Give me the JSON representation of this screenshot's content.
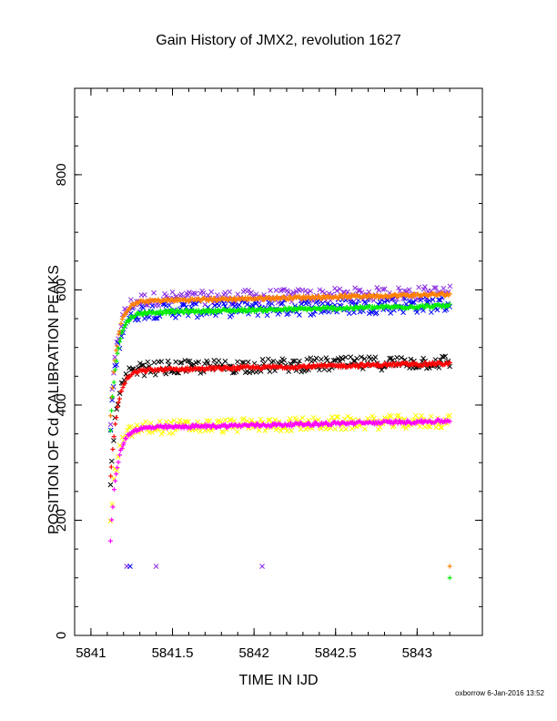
{
  "title": "Gain History of JMX2, revolution 1627",
  "footer": "oxborrow  6-Jan-2016 13:52",
  "chart_data": {
    "type": "scatter",
    "title": "Gain History of JMX2, revolution 1627",
    "xlabel": "TIME IN IJD",
    "ylabel": "POSITION OF Cd CALIBRATION PEAKS",
    "xlim": [
      5840.9,
      5843.4
    ],
    "ylim": [
      0,
      950
    ],
    "xticks": [
      5841,
      5841.5,
      5842,
      5842.5,
      5843
    ],
    "xtick_labels": [
      "5841",
      "5841.5",
      "5842",
      "5842.5",
      "5843"
    ],
    "yticks": [
      0,
      200,
      400,
      600,
      800
    ],
    "ytick_labels": [
      "0",
      "200",
      "400",
      "600",
      "800"
    ],
    "grid": false,
    "series": [
      {
        "color": "#8a2be2",
        "marker": "x",
        "level": 585,
        "start": 370,
        "noise": 12,
        "x_start": 5841.12,
        "x_end": 5843.2,
        "n": 220
      },
      {
        "color": "#0000ff",
        "marker": "x",
        "level": 565,
        "start": 360,
        "noise": 14,
        "x_start": 5841.12,
        "x_end": 5843.2,
        "n": 220
      },
      {
        "color": "#ff8000",
        "marker": "+",
        "level": 582,
        "start": 380,
        "noise": 3,
        "x_start": 5841.12,
        "x_end": 5843.2,
        "n": 300
      },
      {
        "color": "#00ee00",
        "marker": "+",
        "level": 562,
        "start": 360,
        "noise": 3,
        "x_start": 5841.12,
        "x_end": 5843.2,
        "n": 300
      },
      {
        "color": "#000000",
        "marker": "x",
        "level": 465,
        "start": 275,
        "noise": 12,
        "x_start": 5841.12,
        "x_end": 5843.2,
        "n": 220
      },
      {
        "color": "#ff0000",
        "marker": "+",
        "level": 462,
        "start": 270,
        "noise": 3,
        "x_start": 5841.12,
        "x_end": 5843.2,
        "n": 300
      },
      {
        "color": "#ffff00",
        "marker": "x",
        "level": 362,
        "start": 200,
        "noise": 12,
        "x_start": 5841.12,
        "x_end": 5843.2,
        "n": 220
      },
      {
        "color": "#ff00ff",
        "marker": "+",
        "level": 362,
        "start": 170,
        "noise": 3,
        "x_start": 5841.12,
        "x_end": 5843.2,
        "n": 300
      }
    ],
    "outliers": [
      {
        "x": 5841.22,
        "y": 120,
        "color": "#8a2be2",
        "marker": "x"
      },
      {
        "x": 5841.24,
        "y": 120,
        "color": "#0000ff",
        "marker": "x"
      },
      {
        "x": 5841.4,
        "y": 120,
        "color": "#8a2be2",
        "marker": "x"
      },
      {
        "x": 5842.05,
        "y": 120,
        "color": "#8a2be2",
        "marker": "x"
      },
      {
        "x": 5843.2,
        "y": 120,
        "color": "#ff8000",
        "marker": "+"
      },
      {
        "x": 5843.2,
        "y": 100,
        "color": "#00ee00",
        "marker": "+"
      }
    ]
  }
}
